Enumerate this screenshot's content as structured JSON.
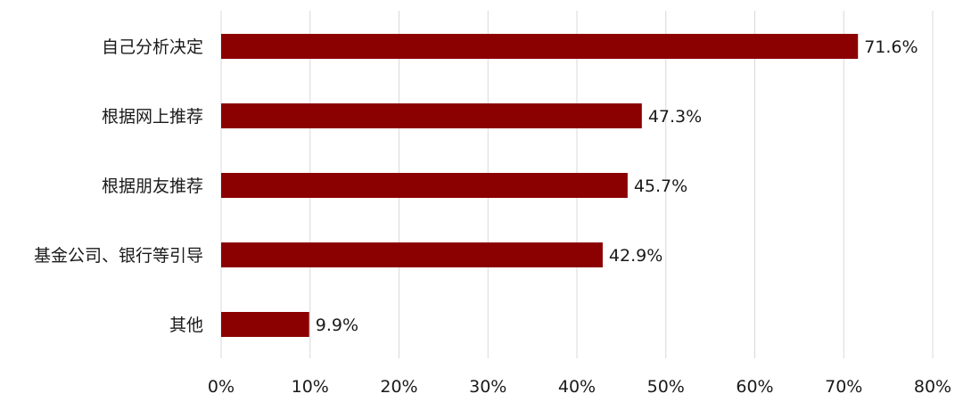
{
  "chart_data": {
    "type": "bar",
    "orientation": "horizontal",
    "categories": [
      "自己分析决定",
      "根据网上推荐",
      "根据朋友推荐",
      "基金公司、银行等引导",
      "其他"
    ],
    "values": [
      71.6,
      47.3,
      45.7,
      42.9,
      9.9
    ],
    "value_labels": [
      "71.6%",
      "47.3%",
      "45.7%",
      "42.9%",
      "9.9%"
    ],
    "xlim": [
      0,
      80
    ],
    "x_ticks": [
      0,
      10,
      20,
      30,
      40,
      50,
      60,
      70,
      80
    ],
    "x_tick_labels": [
      "0%",
      "10%",
      "20%",
      "30%",
      "40%",
      "50%",
      "60%",
      "70%",
      "80%"
    ],
    "bar_color": "#8b0000",
    "grid": true,
    "legend": "none"
  }
}
